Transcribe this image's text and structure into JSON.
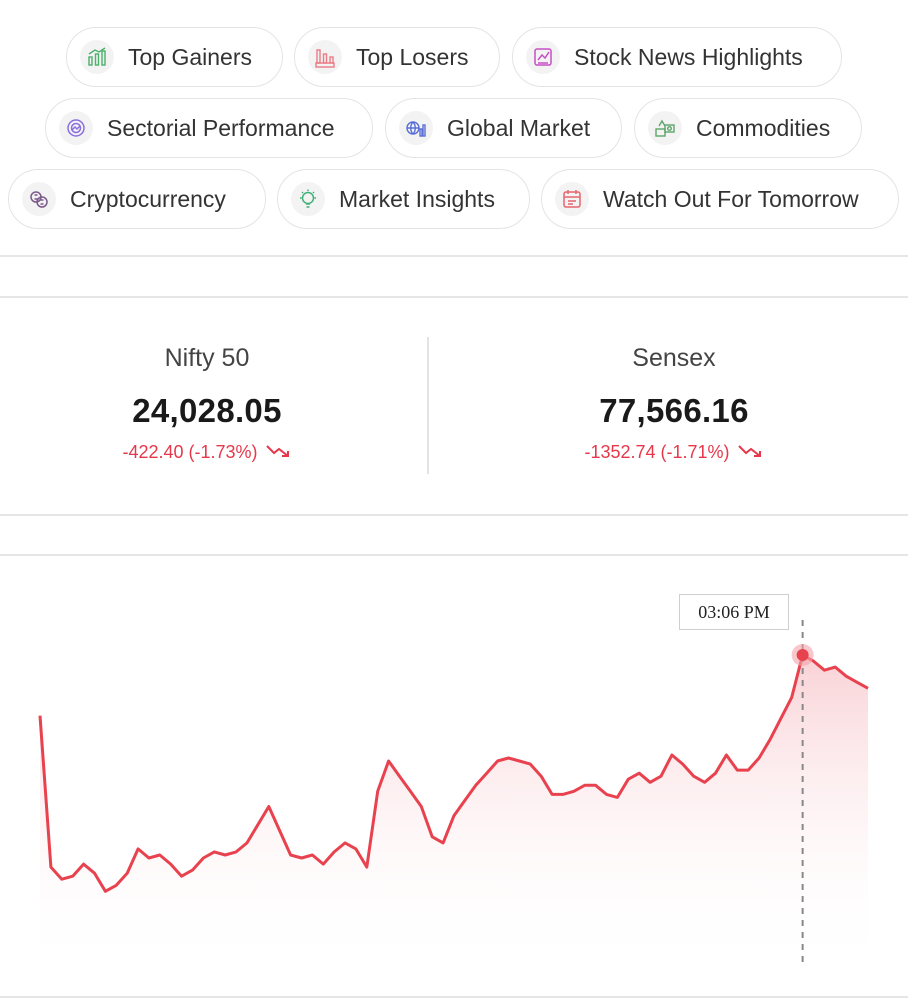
{
  "nav": {
    "chips": [
      {
        "label": "Top Gainers",
        "icon": "top-gainers-icon",
        "color": "#4caf6a"
      },
      {
        "label": "Top Losers",
        "icon": "top-losers-icon",
        "color": "#ec7a84"
      },
      {
        "label": "Stock News Highlights",
        "icon": "stock-news-icon",
        "color": "#c64fc4"
      },
      {
        "label": "Sectorial Performance",
        "icon": "sectorial-performance-icon",
        "color": "#8a6ee0"
      },
      {
        "label": "Global Market",
        "icon": "global-market-icon",
        "color": "#5a6fd8"
      },
      {
        "label": "Commodities",
        "icon": "commodities-icon",
        "color": "#5ea46a"
      },
      {
        "label": "Cryptocurrency",
        "icon": "cryptocurrency-icon",
        "color": "#7a5a8a"
      },
      {
        "label": "Market Insights",
        "icon": "market-insights-icon",
        "color": "#43b07a"
      },
      {
        "label": "Watch Out For Tomorrow",
        "icon": "watch-out-icon",
        "color": "#e8646e"
      }
    ]
  },
  "indices": [
    {
      "name": "Nifty 50",
      "value": "24,028.05",
      "change": "-422.40 (-1.73%)",
      "direction": "down"
    },
    {
      "name": "Sensex",
      "value": "77,566.16",
      "change": "-1352.74 (-1.71%)",
      "direction": "down"
    }
  ],
  "colors": {
    "negative": "#e6384a",
    "line": "#e8424f",
    "border": "#e4e4e4"
  },
  "chart_data": {
    "type": "area",
    "title": "",
    "xlabel": "",
    "ylabel": "",
    "grid": false,
    "tooltip": {
      "label": "03:06 PM",
      "point_index": 70
    },
    "values": [
      0.8,
      0.3,
      0.26,
      0.27,
      0.31,
      0.28,
      0.22,
      0.24,
      0.28,
      0.36,
      0.33,
      0.34,
      0.31,
      0.27,
      0.29,
      0.33,
      0.35,
      0.34,
      0.35,
      0.38,
      0.44,
      0.5,
      0.42,
      0.34,
      0.33,
      0.34,
      0.31,
      0.35,
      0.38,
      0.36,
      0.3,
      0.55,
      0.65,
      0.6,
      0.55,
      0.5,
      0.4,
      0.38,
      0.47,
      0.52,
      0.57,
      0.61,
      0.65,
      0.66,
      0.65,
      0.64,
      0.6,
      0.54,
      0.54,
      0.55,
      0.57,
      0.57,
      0.54,
      0.53,
      0.59,
      0.61,
      0.58,
      0.6,
      0.67,
      0.64,
      0.6,
      0.58,
      0.61,
      0.67,
      0.62,
      0.62,
      0.66,
      0.72,
      0.79,
      0.86,
      1.0,
      0.98,
      0.95,
      0.96,
      0.93,
      0.91,
      0.89
    ]
  }
}
